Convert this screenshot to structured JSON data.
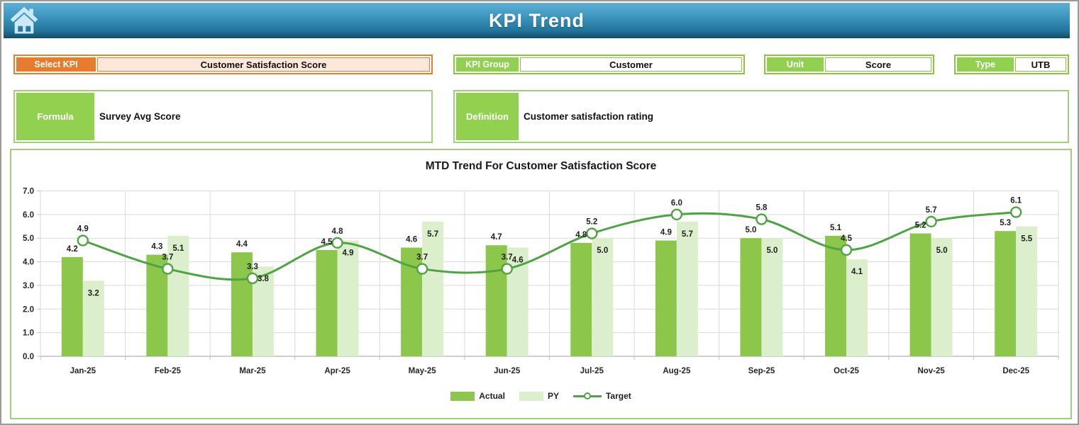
{
  "header": {
    "title": "KPI Trend"
  },
  "controls": {
    "select_kpi": {
      "label": "Select KPI",
      "value": "Customer Satisfaction Score"
    },
    "kpi_group": {
      "label": "KPI Group",
      "value": "Customer"
    },
    "unit": {
      "label": "Unit",
      "value": "Score"
    },
    "type": {
      "label": "Type",
      "value": "UTB"
    },
    "formula": {
      "label": "Formula",
      "value": "Survey Avg Score"
    },
    "definition": {
      "label": "Definition",
      "value": "Customer satisfaction rating"
    }
  },
  "chart_data": {
    "type": "combo-bar-line",
    "title": "MTD Trend For Customer Satisfaction Score",
    "categories": [
      "Jan-25",
      "Feb-25",
      "Mar-25",
      "Apr-25",
      "May-25",
      "Jun-25",
      "Jul-25",
      "Aug-25",
      "Sep-25",
      "Oct-25",
      "Nov-25",
      "Dec-25"
    ],
    "series": [
      {
        "name": "Actual",
        "type": "bar",
        "color": "#8cc64b",
        "values": [
          4.2,
          4.3,
          4.4,
          4.5,
          4.6,
          4.7,
          4.8,
          4.9,
          5.0,
          5.1,
          5.2,
          5.3
        ]
      },
      {
        "name": "PY",
        "type": "bar",
        "color": "#dcefcc",
        "values": [
          3.2,
          5.1,
          3.8,
          4.9,
          5.7,
          4.6,
          5.0,
          5.7,
          5.0,
          4.1,
          5.0,
          5.5
        ]
      },
      {
        "name": "Target",
        "type": "line",
        "color": "#50a345",
        "marker": "circle",
        "values": [
          4.9,
          3.7,
          3.3,
          4.8,
          3.7,
          3.7,
          5.2,
          6.0,
          5.8,
          4.5,
          5.7,
          6.1
        ]
      }
    ],
    "ylim": [
      0,
      7
    ],
    "ytick_step": 1,
    "ytick_decimals": 1,
    "label_decimals": 1,
    "grid": true,
    "legend_position": "bottom",
    "grid_color": "#d9d9d9",
    "axis_color": "#bfbfbf"
  },
  "colors": {
    "accent_green": "#92d050",
    "accent_green_border": "#8cc63f",
    "accent_orange": "#e87c2e",
    "peach_fill": "#fbe8da",
    "header_blue_top": "#5cb0d4",
    "header_blue_bottom": "#134c68"
  }
}
